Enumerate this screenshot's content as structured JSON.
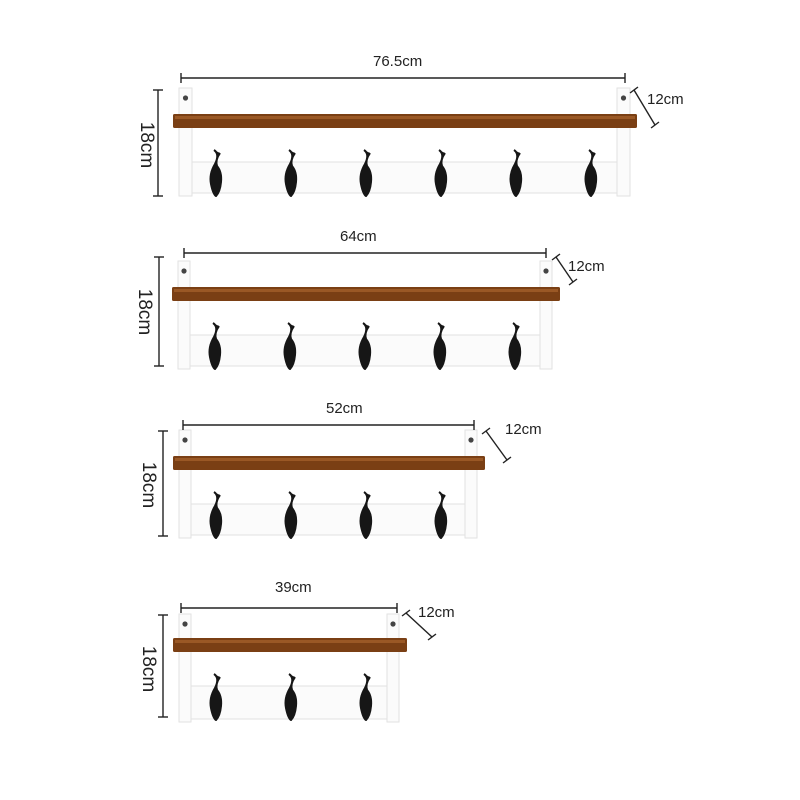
{
  "racks": [
    {
      "width_label": "76.5cm",
      "depth_label": "12cm",
      "height_label": "18cm",
      "hook_count": 6
    },
    {
      "width_label": "64cm",
      "depth_label": "12cm",
      "height_label": "18cm",
      "hook_count": 5
    },
    {
      "width_label": "52cm",
      "depth_label": "12cm",
      "height_label": "18cm",
      "hook_count": 4
    },
    {
      "width_label": "39cm",
      "depth_label": "12cm",
      "height_label": "18cm",
      "hook_count": 3
    }
  ],
  "colors": {
    "shelf_wood": "#7a3f14",
    "shelf_highlight": "#a8642c",
    "frame_white": "#fbfbfb",
    "frame_edge": "#e2e2e2",
    "hook_black": "#161616",
    "dimension_line": "#222222"
  }
}
